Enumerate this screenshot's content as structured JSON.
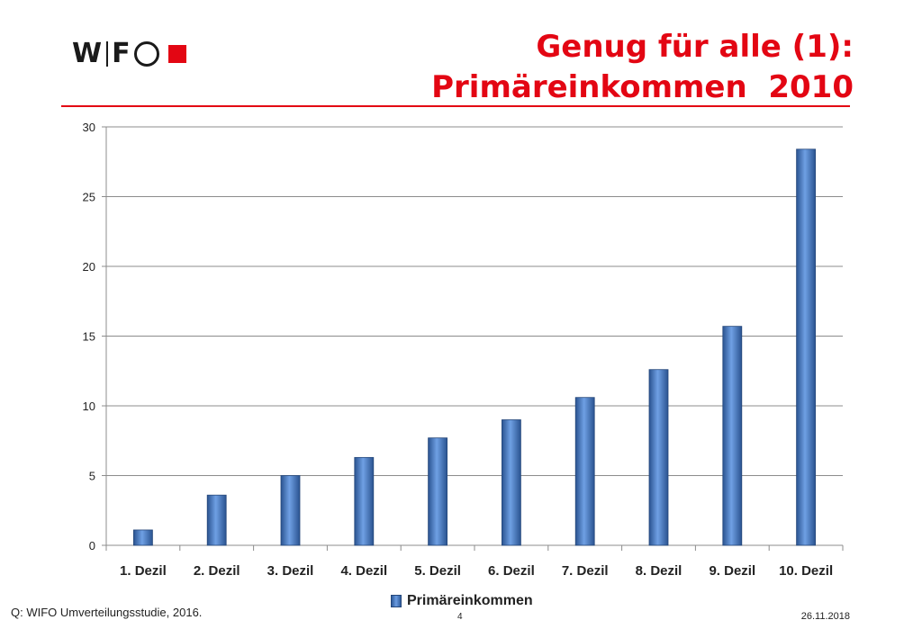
{
  "header": {
    "logo_text": "WIFO",
    "title_line1": "Genug für alle (1):",
    "title_line2": "Primäreinkommen  2010"
  },
  "footer": {
    "source": "Q: WIFO Umverteilungsstudie, 2016.",
    "page_number": "4",
    "date": "26.11.2018"
  },
  "colors": {
    "accent": "#e30613",
    "bar_dark": "#2f5c9c",
    "bar_light": "#6a9be0"
  },
  "chart_data": {
    "type": "bar",
    "title": "",
    "xlabel": "",
    "ylabel": "",
    "categories": [
      "1. Dezil",
      "2. Dezil",
      "3. Dezil",
      "4. Dezil",
      "5. Dezil",
      "6. Dezil",
      "7. Dezil",
      "8. Dezil",
      "9. Dezil",
      "10. Dezil"
    ],
    "series": [
      {
        "name": "Primäreinkommen",
        "values": [
          1.1,
          3.6,
          5.0,
          6.3,
          7.7,
          9.0,
          10.6,
          12.6,
          15.7,
          28.4
        ]
      }
    ],
    "ylim": [
      0,
      30
    ],
    "yticks": [
      0,
      5,
      10,
      15,
      20,
      25,
      30
    ],
    "grid": true,
    "legend": "bottom"
  }
}
